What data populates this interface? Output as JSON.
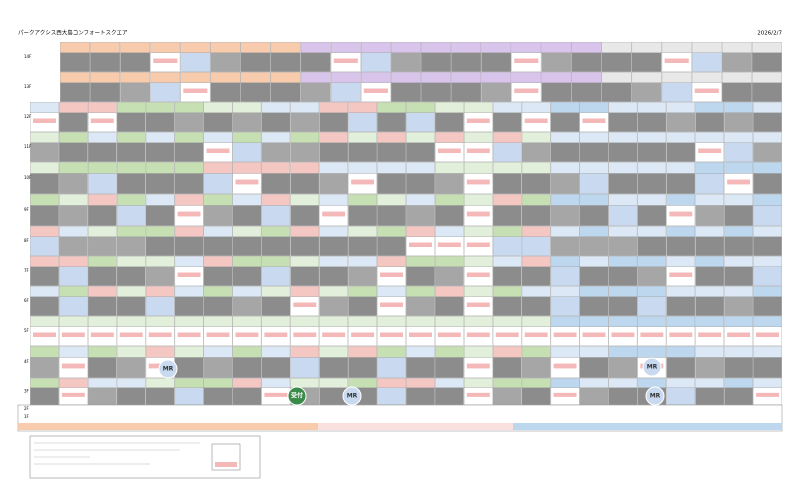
{
  "header": {
    "title": "パークアクシス西大島コンフォートスクエア",
    "date": "2026/2/7"
  },
  "floors": [
    "14F",
    "13F",
    "12F",
    "11F",
    "10F",
    "9F",
    "8F",
    "7F",
    "6F",
    "5F",
    "4F",
    "3F",
    "2F",
    "1F"
  ],
  "markers": [
    "MR",
    "MR",
    "受付",
    "MR",
    "MR"
  ]
}
